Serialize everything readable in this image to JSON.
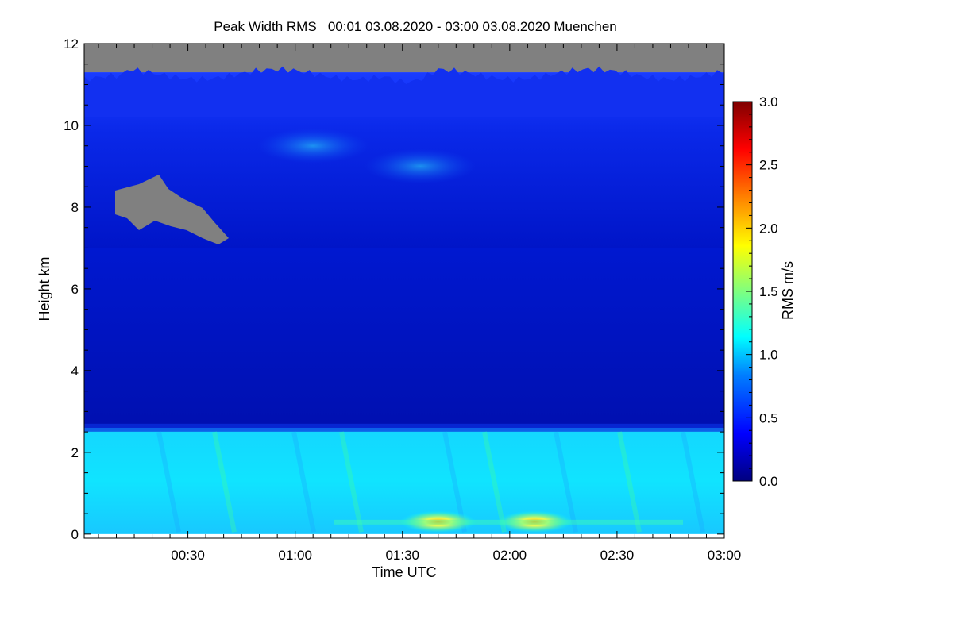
{
  "chart_data": {
    "type": "heatmap",
    "title": "Peak Width RMS   00:01 03.08.2020 - 03:00 03.08.2020 Muenchen",
    "xlabel": "Time UTC",
    "ylabel": "Height km",
    "x_range_minutes": [
      1,
      180
    ],
    "ylim": [
      -0.1,
      12
    ],
    "x_ticks": [
      {
        "minutes": 30,
        "label": "00:30"
      },
      {
        "minutes": 60,
        "label": "01:00"
      },
      {
        "minutes": 90,
        "label": "01:30"
      },
      {
        "minutes": 120,
        "label": "02:00"
      },
      {
        "minutes": 150,
        "label": "02:30"
      },
      {
        "minutes": 180,
        "label": "03:00"
      }
    ],
    "y_ticks": [
      {
        "value": 0,
        "label": "0"
      },
      {
        "value": 2,
        "label": "2"
      },
      {
        "value": 4,
        "label": "4"
      },
      {
        "value": 6,
        "label": "6"
      },
      {
        "value": 8,
        "label": "8"
      },
      {
        "value": 10,
        "label": "10"
      },
      {
        "value": 12,
        "label": "12"
      }
    ],
    "colorbar": {
      "label": "RMS m/s",
      "range": [
        0.0,
        3.0
      ],
      "ticks": [
        {
          "value": 0.0,
          "label": "0.0"
        },
        {
          "value": 0.5,
          "label": "0.5"
        },
        {
          "value": 1.0,
          "label": "1.0"
        },
        {
          "value": 1.5,
          "label": "1.5"
        },
        {
          "value": 2.0,
          "label": "2.0"
        },
        {
          "value": 2.5,
          "label": "2.5"
        },
        {
          "value": 3.0,
          "label": "3.0"
        }
      ],
      "colormap": [
        "#00007f",
        "#0000ff",
        "#007fff",
        "#00ffff",
        "#7fff7f",
        "#ffff00",
        "#ff7f00",
        "#ff0000",
        "#7f0000"
      ]
    },
    "missing_color": "#808080",
    "layers": [
      {
        "height_km": [
          0.0,
          2.6
        ],
        "rms": 1.0
      },
      {
        "height_km": [
          2.6,
          7.0
        ],
        "rms": 0.35
      },
      {
        "height_km": [
          7.0,
          11.3
        ],
        "rms": 0.45
      },
      {
        "height_km": [
          11.3,
          12.0
        ],
        "rms": null
      }
    ],
    "hotspots": [
      {
        "minutes": 100,
        "height_km": 0.3,
        "rms": 2.2
      },
      {
        "minutes": 127,
        "height_km": 0.3,
        "rms": 2.2
      },
      {
        "minutes": 65,
        "height_km": 9.5,
        "rms": 1.1
      },
      {
        "minutes": 95,
        "height_km": 9.0,
        "rms": 1.0
      }
    ],
    "grid": false
  }
}
